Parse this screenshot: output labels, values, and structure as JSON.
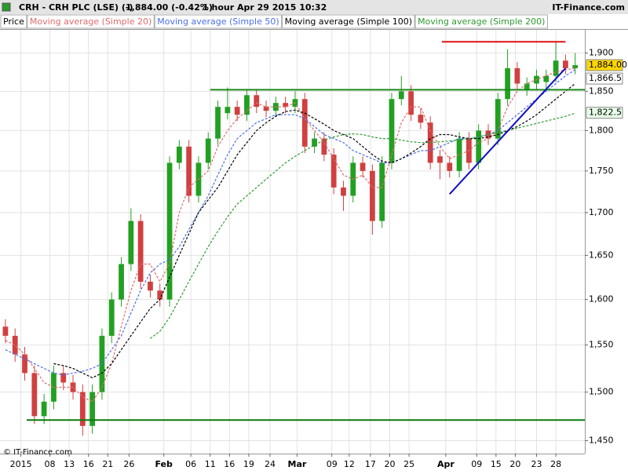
{
  "chart_data": {
    "type": "candlestick",
    "header": {
      "symbol": "CRH - CRH PLC (LSE) (-)",
      "quote": "1,884.00 (-0.42%)",
      "period": "1 hour",
      "date": "Apr 29 2015 10:32",
      "source": "IT-Finance.com"
    },
    "footer": "© IT-Finance.com",
    "price_name": "Price",
    "log_scale": true,
    "grid": true,
    "up_color": "#22a022",
    "down_color": "#d04040",
    "x": [
      0,
      5,
      10,
      15,
      20,
      25,
      30,
      35,
      40,
      45,
      50,
      55,
      60,
      65,
      70,
      75,
      80,
      85,
      90,
      95,
      100,
      105,
      110,
      115,
      120,
      125,
      130,
      135,
      140,
      145,
      150,
      155,
      160,
      165,
      170,
      175,
      180,
      185,
      190,
      195,
      200,
      205,
      210,
      215,
      220,
      225,
      230,
      235,
      240,
      245,
      250,
      255,
      260,
      265,
      270,
      275,
      280,
      285,
      290,
      295
    ],
    "open": [
      1570,
      1560,
      1540,
      1520,
      1475,
      1490,
      1520,
      1510,
      1500,
      1465,
      1500,
      1560,
      1600,
      1640,
      1690,
      1620,
      1610,
      1600,
      1760,
      1780,
      1720,
      1760,
      1790,
      1822,
      1830,
      1820,
      1845,
      1830,
      1825,
      1835,
      1830,
      1840,
      1780,
      1790,
      1770,
      1730,
      1720,
      1760,
      1750,
      1690,
      1760,
      1840,
      1850,
      1820,
      1810,
      1768,
      1760,
      1750,
      1790,
      1760,
      1800,
      1790,
      1840,
      1880,
      1852,
      1860,
      1862,
      1870,
      1890,
      1880
    ],
    "high": [
      1578,
      1568,
      1548,
      1528,
      1498,
      1528,
      1528,
      1518,
      1508,
      1508,
      1568,
      1608,
      1648,
      1705,
      1698,
      1628,
      1618,
      1768,
      1788,
      1788,
      1768,
      1798,
      1838,
      1855,
      1838,
      1853,
      1853,
      1838,
      1843,
      1843,
      1850,
      1848,
      1798,
      1798,
      1778,
      1738,
      1768,
      1768,
      1758,
      1768,
      1848,
      1870,
      1858,
      1828,
      1818,
      1776,
      1768,
      1798,
      1798,
      1808,
      1808,
      1848,
      1905,
      1888,
      1868,
      1878,
      1878,
      1915,
      1898,
      1900
    ],
    "low": [
      1552,
      1532,
      1512,
      1467,
      1467,
      1482,
      1502,
      1492,
      1455,
      1457,
      1492,
      1552,
      1592,
      1632,
      1612,
      1602,
      1592,
      1592,
      1752,
      1712,
      1712,
      1752,
      1782,
      1814,
      1812,
      1812,
      1822,
      1817,
      1817,
      1822,
      1822,
      1772,
      1772,
      1762,
      1722,
      1702,
      1712,
      1742,
      1674,
      1682,
      1752,
      1832,
      1812,
      1802,
      1752,
      1740,
      1742,
      1742,
      1752,
      1752,
      1782,
      1782,
      1832,
      1852,
      1844,
      1852,
      1854,
      1862,
      1872,
      1872
    ],
    "close": [
      1560,
      1540,
      1520,
      1475,
      1490,
      1520,
      1510,
      1500,
      1465,
      1500,
      1560,
      1600,
      1640,
      1690,
      1620,
      1610,
      1600,
      1760,
      1780,
      1720,
      1760,
      1790,
      1830,
      1830,
      1820,
      1845,
      1830,
      1825,
      1835,
      1830,
      1840,
      1780,
      1790,
      1770,
      1730,
      1720,
      1760,
      1750,
      1690,
      1760,
      1840,
      1850,
      1820,
      1810,
      1760,
      1760,
      1750,
      1790,
      1760,
      1800,
      1790,
      1840,
      1880,
      1860,
      1860,
      1870,
      1870,
      1890,
      1880,
      1884
    ],
    "series": [
      {
        "name": "Moving average (Simple 20)",
        "color": "#e06b6b",
        "values": [
          1555,
          1550,
          1540,
          1525,
          1510,
          1505,
          1505,
          1505,
          1495,
          1490,
          1505,
          1530,
          1570,
          1610,
          1640,
          1640,
          1620,
          1640,
          1700,
          1730,
          1740,
          1750,
          1780,
          1800,
          1815,
          1825,
          1835,
          1830,
          1830,
          1830,
          1835,
          1815,
          1800,
          1785,
          1765,
          1745,
          1740,
          1745,
          1730,
          1730,
          1770,
          1810,
          1830,
          1830,
          1800,
          1780,
          1765,
          1770,
          1775,
          1785,
          1790,
          1800,
          1830,
          1850,
          1860,
          1865,
          1870,
          1875,
          1878,
          1880
        ]
      },
      {
        "name": "Moving average (Simple 50)",
        "color": "#4a6ee8",
        "values": [
          1545,
          1540,
          1535,
          1530,
          1525,
          1520,
          1518,
          1520,
          1522,
          1525,
          1530,
          1545,
          1560,
          1585,
          1610,
          1630,
          1640,
          1645,
          1660,
          1680,
          1700,
          1720,
          1745,
          1770,
          1790,
          1800,
          1810,
          1815,
          1820,
          1820,
          1820,
          1815,
          1805,
          1795,
          1790,
          1785,
          1775,
          1770,
          1765,
          1760,
          1760,
          1765,
          1770,
          1775,
          1775,
          1780,
          1785,
          1790,
          1790,
          1792,
          1795,
          1800,
          1810,
          1820,
          1830,
          1840,
          1850,
          1860,
          1870,
          1878
        ]
      },
      {
        "name": "Moving average (Simple 100)",
        "color": "#000000",
        "values": [
          null,
          null,
          null,
          null,
          null,
          1530,
          1528,
          1525,
          1520,
          1515,
          1520,
          1530,
          1545,
          1560,
          1575,
          1590,
          1600,
          1625,
          1650,
          1675,
          1700,
          1715,
          1730,
          1750,
          1770,
          1785,
          1800,
          1810,
          1818,
          1824,
          1826,
          1822,
          1815,
          1808,
          1800,
          1795,
          1790,
          1780,
          1770,
          1762,
          1760,
          1765,
          1772,
          1780,
          1790,
          1795,
          1795,
          1792,
          1790,
          1790,
          1792,
          1795,
          1800,
          1805,
          1812,
          1820,
          1830,
          1840,
          1850,
          1860
        ]
      },
      {
        "name": "Moving average (Simple 200)",
        "color": "#2e9a2e",
        "values": [
          null,
          null,
          null,
          null,
          null,
          null,
          null,
          null,
          null,
          null,
          null,
          null,
          null,
          null,
          null,
          1557,
          1565,
          1580,
          1600,
          1620,
          1640,
          1660,
          1678,
          1695,
          1710,
          1720,
          1730,
          1740,
          1750,
          1760,
          1768,
          1775,
          1782,
          1788,
          1792,
          1795,
          1796,
          1795,
          1792,
          1790,
          1790,
          1788,
          1786,
          1785,
          1785,
          1786,
          1787,
          1788,
          1790,
          1792,
          1795,
          1798,
          1800,
          1803,
          1806,
          1809,
          1812,
          1815,
          1818,
          1822
        ]
      }
    ],
    "lines": [
      {
        "color": "#e01010",
        "x": [
          226,
          290
        ],
        "y": [
          1915,
          1915
        ]
      },
      {
        "color": "#1a8a1a",
        "x": [
          106,
          300
        ],
        "y": [
          1852,
          1852
        ]
      },
      {
        "color": "#1010c0",
        "x": [
          230,
          290
        ],
        "y": [
          1722,
          1880
        ]
      },
      {
        "color": "#0a7a0a",
        "x": [
          11,
          300
        ],
        "y": [
          1471,
          1471
        ]
      }
    ],
    "price_labels": [
      {
        "value": 1884,
        "label": "1,884.00",
        "color": "#ffd700"
      },
      {
        "value": 1866.5,
        "label": "1,866.5",
        "color": "#ffffff"
      },
      {
        "value": 1822.5,
        "label": "1,822.5",
        "color": "#e8ffe8"
      }
    ],
    "xlim": [
      -2,
      300
    ],
    "ylim": [
      1437,
      1931
    ],
    "yticks": [
      {
        "value": 1450,
        "label": "1,450"
      },
      {
        "value": 1500,
        "label": "1,500"
      },
      {
        "value": 1550,
        "label": "1,550"
      },
      {
        "value": 1600,
        "label": "1,600"
      },
      {
        "value": 1650,
        "label": "1,650"
      },
      {
        "value": 1700,
        "label": "1,700"
      },
      {
        "value": 1750,
        "label": "1,750"
      },
      {
        "value": 1800,
        "label": "1,800"
      },
      {
        "value": 1850,
        "label": "1,850"
      },
      {
        "value": 1900,
        "label": "1,900"
      }
    ],
    "xticks": [
      {
        "value": 8,
        "label": "2015"
      },
      {
        "value": 23,
        "label": "08"
      },
      {
        "value": 33,
        "label": "13"
      },
      {
        "value": 43,
        "label": "16"
      },
      {
        "value": 53,
        "label": "21"
      },
      {
        "value": 64,
        "label": "26"
      },
      {
        "value": 82,
        "label": "Feb"
      },
      {
        "value": 96,
        "label": "06"
      },
      {
        "value": 106,
        "label": "11"
      },
      {
        "value": 116,
        "label": "16"
      },
      {
        "value": 126,
        "label": "19"
      },
      {
        "value": 137,
        "label": "24"
      },
      {
        "value": 151,
        "label": "Mar"
      },
      {
        "value": 169,
        "label": "09"
      },
      {
        "value": 178,
        "label": "12"
      },
      {
        "value": 189,
        "label": "17"
      },
      {
        "value": 199,
        "label": "20"
      },
      {
        "value": 209,
        "label": "25"
      },
      {
        "value": 228,
        "label": "Apr"
      },
      {
        "value": 244,
        "label": "09"
      },
      {
        "value": 254,
        "label": "15"
      },
      {
        "value": 264,
        "label": "20"
      },
      {
        "value": 275,
        "label": "23"
      },
      {
        "value": 285,
        "label": "28"
      }
    ]
  }
}
